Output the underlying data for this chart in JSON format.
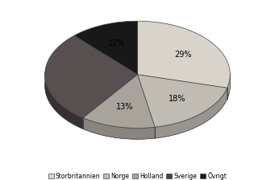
{
  "labels": [
    "Storbritannien",
    "Norge",
    "Holland",
    "Sverige",
    "Övrigt"
  ],
  "values": [
    29,
    18,
    13,
    28,
    12
  ],
  "colors_top": [
    "#d8d4cc",
    "#c0bcb4",
    "#a8a49c",
    "#585050",
    "#181818"
  ],
  "colors_side": [
    "#b0aca4",
    "#989490",
    "#888480",
    "#383030",
    "#080808"
  ],
  "startangle": 90,
  "depth": 0.12,
  "figsize": [
    3.41,
    2.24
  ],
  "dpi": 100,
  "bg_color": "#ffffff",
  "legend_colors": [
    "#d8d4cc",
    "#c0bcb4",
    "#a8a49c",
    "#484040",
    "#181818"
  ],
  "pct_hide_index": 3
}
